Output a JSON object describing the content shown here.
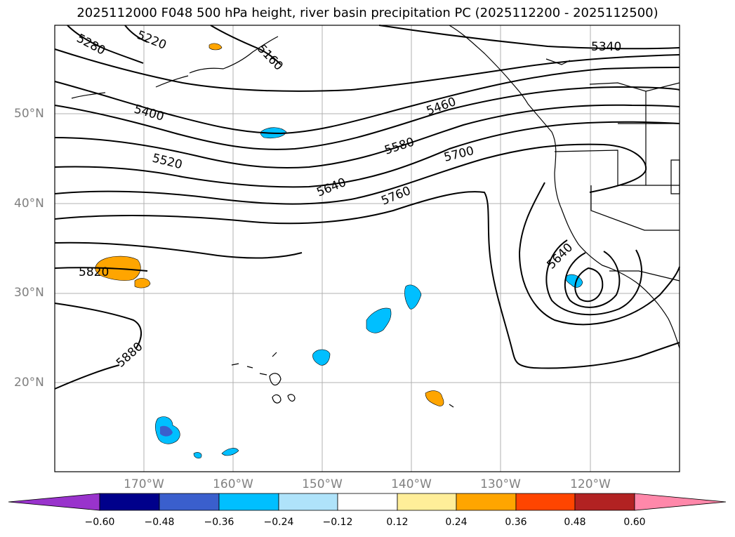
{
  "title": "2025112000 F048 500 hPa height, river basin precipitation PC (2025112200 - 2025112500)",
  "lat_labels": [
    "50°N",
    "40°N",
    "30°N",
    "20°N"
  ],
  "lon_labels": [
    "170°W",
    "160°W",
    "150°W",
    "140°W",
    "130°W",
    "120°W"
  ],
  "contour_labels": {
    "c5280": "5280",
    "c5220": "5220",
    "c5160": "5160",
    "c5340": "5340",
    "c5400": "5400",
    "c5460": "5460",
    "c5520": "5520",
    "c5580": "5580",
    "c5700": "5700",
    "c5640a": "5640",
    "c5760": "5760",
    "c5640b": "5640",
    "c5820": "5820",
    "c5880": "5880"
  },
  "colorbar": {
    "ticks": [
      "−0.60",
      "−0.48",
      "−0.36",
      "−0.24",
      "−0.12",
      "0.12",
      "0.24",
      "0.36",
      "0.48",
      "0.60"
    ],
    "colors": [
      "#9933cc",
      "#00008b",
      "#3a5fcd",
      "#00bfff",
      "#afe3fa",
      "#ffffff",
      "#ffee99",
      "#ffa500",
      "#ff4500",
      "#b22222",
      "#ff88aa"
    ]
  }
}
